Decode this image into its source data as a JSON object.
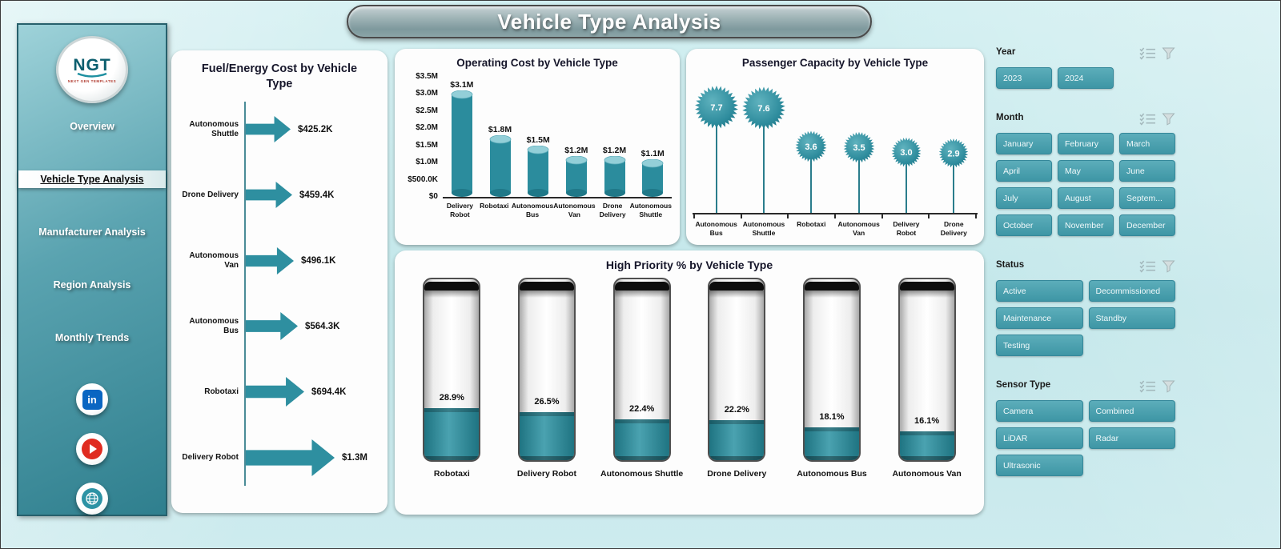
{
  "title": "Vehicle Type Analysis",
  "logo": {
    "text": "NGT",
    "subtext": "NEXT GEN TEMPLATES"
  },
  "sidebar": {
    "items": [
      {
        "label": "Overview",
        "active": false
      },
      {
        "label": "Vehicle Type Analysis",
        "active": true
      },
      {
        "label": "Manufacturer Analysis",
        "active": false
      },
      {
        "label": "Region Analysis",
        "active": false
      },
      {
        "label": "Monthly Trends",
        "active": false
      }
    ],
    "social": [
      "linkedin",
      "youtube",
      "website"
    ]
  },
  "colors": {
    "teal": "#2E8C9C",
    "teal_dark": "#1C7181",
    "teal_light": "#96D2DA",
    "background": "#C8E9EC",
    "button": "#4AA3B1"
  },
  "chart_data": [
    {
      "type": "bar",
      "variant": "arrow-horizontal",
      "title": "Fuel/Energy Cost by Vehicle Type",
      "categories": [
        "Autonomous Shuttle",
        "Drone Delivery",
        "Autonomous Van",
        "Autonomous Bus",
        "Robotaxi",
        "Delivery Robot"
      ],
      "values": [
        425200,
        459400,
        496100,
        564300,
        694400,
        1300000
      ],
      "labels": [
        "$425.2K",
        "$459.4K",
        "$496.1K",
        "$564.3K",
        "$694.4K",
        "$1.3M"
      ]
    },
    {
      "type": "bar",
      "variant": "cylinder",
      "title": "Operating Cost by Vehicle Type",
      "categories": [
        "Delivery Robot",
        "Robotaxi",
        "Autonomous Bus",
        "Autonomous Van",
        "Drone Delivery",
        "Autonomous Shuttle"
      ],
      "values": [
        3100000,
        1800000,
        1500000,
        1200000,
        1200000,
        1100000
      ],
      "labels": [
        "$3.1M",
        "$1.8M",
        "$1.5M",
        "$1.2M",
        "$1.2M",
        "$1.1M"
      ],
      "ylim": [
        0,
        3500000
      ],
      "yticks": [
        {
          "label": "$3.5M",
          "value": 3500000
        },
        {
          "label": "$3.0M",
          "value": 3000000
        },
        {
          "label": "$2.5M",
          "value": 2500000
        },
        {
          "label": "$2.0M",
          "value": 2000000
        },
        {
          "label": "$1.5M",
          "value": 1500000
        },
        {
          "label": "$1.0M",
          "value": 1000000
        },
        {
          "label": "$500.0K",
          "value": 500000
        },
        {
          "label": "$0",
          "value": 0
        }
      ]
    },
    {
      "type": "scatter",
      "variant": "starburst-lollipop",
      "title": "Passenger Capacity by Vehicle Type",
      "categories": [
        "Autonomous Bus",
        "Autonomous Shuttle",
        "Robotaxi",
        "Autonomous Van",
        "Delivery Robot",
        "Drone Delivery"
      ],
      "values": [
        7.7,
        7.6,
        3.6,
        3.5,
        3.0,
        2.9
      ],
      "labels": [
        "7.7",
        "7.6",
        "3.6",
        "3.5",
        "3.0",
        "2.9"
      ]
    },
    {
      "type": "bar",
      "variant": "thermometer-gauge",
      "title": "High Priority % by Vehicle Type",
      "categories": [
        "Robotaxi",
        "Delivery Robot",
        "Autonomous Shuttle",
        "Drone Delivery",
        "Autonomous Bus",
        "Autonomous Van"
      ],
      "values": [
        28.9,
        26.5,
        22.4,
        22.2,
        18.1,
        16.1
      ],
      "labels": [
        "28.9%",
        "26.5%",
        "22.4%",
        "22.2%",
        "18.1%",
        "16.1%"
      ],
      "ylim": [
        0,
        100
      ]
    }
  ],
  "filters": {
    "year": {
      "label": "Year",
      "options": [
        "2023",
        "2024"
      ]
    },
    "month": {
      "label": "Month",
      "options": [
        "January",
        "February",
        "March",
        "April",
        "May",
        "June",
        "July",
        "August",
        "Septem...",
        "October",
        "November",
        "December"
      ]
    },
    "status": {
      "label": "Status",
      "options": [
        "Active",
        "Decommissioned",
        "Maintenance",
        "Standby",
        "Testing"
      ]
    },
    "sensor": {
      "label": "Sensor Type",
      "options": [
        "Camera",
        "Combined",
        "LiDAR",
        "Radar",
        "Ultrasonic"
      ]
    }
  }
}
